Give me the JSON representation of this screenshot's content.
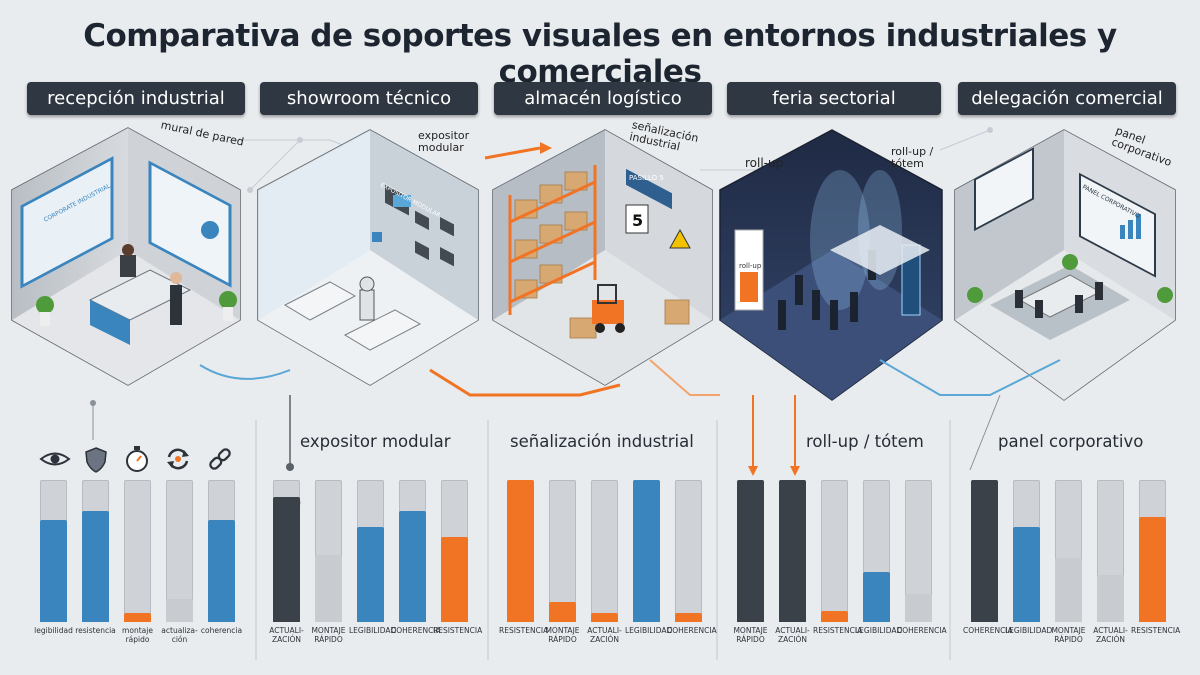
{
  "title": "Comparativa de soportes visuales en entornos industriales y comerciales",
  "tabs": [
    "recepción industrial",
    "showroom técnico",
    "almacén logístico",
    "feria sectorial",
    "delegación comercial"
  ],
  "callouts": {
    "mural": "mural de pared",
    "expositor": "expositor\nmodular",
    "senal": "señalización\nindustrial",
    "rollup": "roll-up",
    "rollup_totem": "roll-up /\ntótem",
    "panel": "panel\ncorporativo"
  },
  "scene_text": {
    "mural_left": "CORPORATE INDUSTRIAL",
    "mural_right": "CORPORATE INFO",
    "expositor_sign": "EXPOSITOR MODULAR",
    "pasillo": "PASILLO 5",
    "zona": "ZONA A",
    "num": "5",
    "rollup_sign": "roll-up",
    "panel_corp": "PANEL CORPORATIVO",
    "corp_small": "CORPORATIVO"
  },
  "chart_data": [
    {
      "type": "bar",
      "title": "",
      "categories": [
        "legibilidad",
        "resistencia",
        "montaje rápido",
        "actualiza-ción",
        "coherencia"
      ],
      "values": [
        0.72,
        0.78,
        0.06,
        0.16,
        0.72
      ],
      "colors": [
        "#3a85bd",
        "#3a85bd",
        "#f07424",
        "#c8cbcf",
        "#3a85bd"
      ]
    },
    {
      "type": "bar",
      "title": "expositor modular",
      "categories": [
        "ACTUALI-ZACIÓN",
        "MONTAJE RÁPIDO",
        "LEGIBILIDAD",
        "COHERENCIA",
        "RESISTENCIA"
      ],
      "values": [
        0.88,
        0.47,
        0.67,
        0.78,
        0.6
      ],
      "colors": [
        "#3b4148",
        "#c8cbcf",
        "#3a85bd",
        "#3a85bd",
        "#f07424"
      ]
    },
    {
      "type": "bar",
      "title": "señalización industrial",
      "categories": [
        "RESISTENCIA",
        "MONTAJE RÁPIDO",
        "ACTUALI-ZACIÓN",
        "LEGIBILIDAD",
        "COHERENCIA"
      ],
      "values": [
        1.0,
        0.14,
        0.06,
        1.0,
        0.06
      ],
      "colors": [
        "#f07424",
        "#f07424",
        "#f07424",
        "#3a85bd",
        "#f07424"
      ]
    },
    {
      "type": "bar",
      "title": "roll-up / tótem",
      "categories": [
        "MONTAJE RÁPIDO",
        "ACTUALI-ZACIÓN",
        "RESISTENCIA",
        "LEGIBILIDAD",
        "COHERENCIA"
      ],
      "values": [
        1.0,
        1.0,
        0.08,
        0.35,
        0.2
      ],
      "colors": [
        "#3b4148",
        "#3b4148",
        "#f07424",
        "#3a85bd",
        "#c8cbcf"
      ]
    },
    {
      "type": "bar",
      "title": "panel corporativo",
      "categories": [
        "COHERENCIA",
        "LEGIBILIDAD",
        "MONTAJE RÁPIDO",
        "ACTUALI-ZACIÓN",
        "RESISTENCIA"
      ],
      "values": [
        1.0,
        0.67,
        0.45,
        0.33,
        0.74
      ],
      "colors": [
        "#3b4148",
        "#3a85bd",
        "#c8cbcf",
        "#c8cbcf",
        "#f07424"
      ]
    }
  ],
  "icons": [
    "eye-icon",
    "shield-icon",
    "stopwatch-icon",
    "refresh-icon",
    "link-icon"
  ]
}
